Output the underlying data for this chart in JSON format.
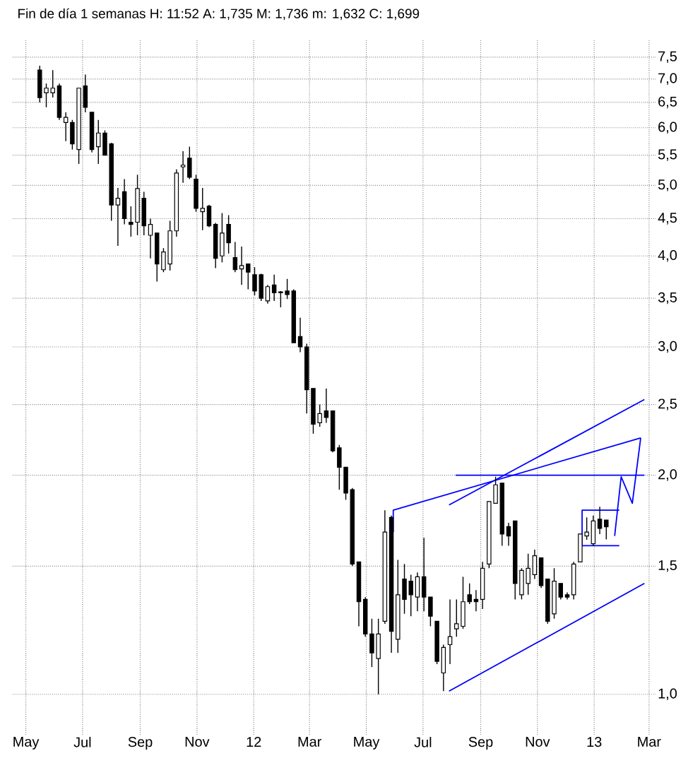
{
  "chart_data": {
    "type": "candlestick",
    "title": "Fin de día 1 semanas  H: 11:52  A: 1,735  M: 1,736  m: 1,632  C: 1,699",
    "color": "#000000",
    "log": "y",
    "grid": true,
    "xlim": [
      "2011-04-17",
      "2013-03-08"
    ],
    "ylim": [
      0.88,
      7.93
    ],
    "xticks": [
      {
        "value": "2011-05-01",
        "label": "May"
      },
      {
        "value": "2011-07-01",
        "label": "Jul"
      },
      {
        "value": "2011-09-01",
        "label": "Sep"
      },
      {
        "value": "2011-11-01",
        "label": "Nov"
      },
      {
        "value": "2012-01-01",
        "label": "12"
      },
      {
        "value": "2012-03-01",
        "label": "Mar"
      },
      {
        "value": "2012-05-01",
        "label": "May"
      },
      {
        "value": "2012-07-01",
        "label": "Jul"
      },
      {
        "value": "2012-09-01",
        "label": "Sep"
      },
      {
        "value": "2012-11-01",
        "label": "Nov"
      },
      {
        "value": "2013-01-01",
        "label": "13"
      },
      {
        "value": "2013-03-01",
        "label": "Mar"
      }
    ],
    "yticks": [
      {
        "value": 1.0,
        "label": "1,0"
      },
      {
        "value": 1.5,
        "label": "1,5"
      },
      {
        "value": 2.0,
        "label": "2,0"
      },
      {
        "value": 2.5,
        "label": "2,5"
      },
      {
        "value": 3.0,
        "label": "3,0"
      },
      {
        "value": 3.5,
        "label": "3,5"
      },
      {
        "value": 4.0,
        "label": "4,0"
      },
      {
        "value": 4.5,
        "label": "4,5"
      },
      {
        "value": 5.0,
        "label": "5,0"
      },
      {
        "value": 5.5,
        "label": "5,5"
      },
      {
        "value": 6.0,
        "label": "6,0"
      },
      {
        "value": 6.5,
        "label": "6,5"
      },
      {
        "value": 7.0,
        "label": "7,0"
      },
      {
        "value": 7.5,
        "label": "7,5"
      }
    ],
    "x": [
      "2011-05-16",
      "2011-05-23",
      "2011-05-30",
      "2011-06-06",
      "2011-06-13",
      "2011-06-20",
      "2011-06-27",
      "2011-07-04",
      "2011-07-11",
      "2011-07-18",
      "2011-07-25",
      "2011-08-01",
      "2011-08-08",
      "2011-08-15",
      "2011-08-22",
      "2011-08-29",
      "2011-09-05",
      "2011-09-12",
      "2011-09-19",
      "2011-09-26",
      "2011-10-03",
      "2011-10-10",
      "2011-10-17",
      "2011-10-24",
      "2011-10-31",
      "2011-11-07",
      "2011-11-14",
      "2011-11-21",
      "2011-11-28",
      "2011-12-05",
      "2011-12-12",
      "2011-12-19",
      "2011-12-26",
      "2012-01-02",
      "2012-01-09",
      "2012-01-16",
      "2012-01-23",
      "2012-01-30",
      "2012-02-06",
      "2012-02-13",
      "2012-02-20",
      "2012-02-27",
      "2012-03-05",
      "2012-03-12",
      "2012-03-19",
      "2012-03-26",
      "2012-04-02",
      "2012-04-09",
      "2012-04-16",
      "2012-04-23",
      "2012-04-30",
      "2012-05-07",
      "2012-05-14",
      "2012-05-21",
      "2012-05-28",
      "2012-06-04",
      "2012-06-11",
      "2012-06-18",
      "2012-06-25",
      "2012-07-02",
      "2012-07-09",
      "2012-07-16",
      "2012-07-23",
      "2012-07-30",
      "2012-08-06",
      "2012-08-13",
      "2012-08-20",
      "2012-08-27",
      "2012-09-03",
      "2012-09-10",
      "2012-09-17",
      "2012-09-24",
      "2012-10-01",
      "2012-10-08",
      "2012-10-15",
      "2012-10-22",
      "2012-10-29",
      "2012-11-05",
      "2012-11-12",
      "2012-11-19",
      "2012-11-26",
      "2012-12-03",
      "2012-12-10",
      "2012-12-17",
      "2012-12-24",
      "2012-12-31",
      "2013-01-07",
      "2013-01-14"
    ],
    "ohlc": [
      [
        7.2,
        7.3,
        6.5,
        6.6
      ],
      [
        6.7,
        6.9,
        6.4,
        6.8
      ],
      [
        6.7,
        7.2,
        6.6,
        6.8
      ],
      [
        6.85,
        6.9,
        6.15,
        6.2
      ],
      [
        6.1,
        6.3,
        5.75,
        6.2
      ],
      [
        6.1,
        6.15,
        5.6,
        5.7
      ],
      [
        5.6,
        6.8,
        5.35,
        6.8
      ],
      [
        6.85,
        7.1,
        6.3,
        6.4
      ],
      [
        6.3,
        6.3,
        5.55,
        5.6
      ],
      [
        5.65,
        6.15,
        5.35,
        5.9
      ],
      [
        5.9,
        5.95,
        5.5,
        5.5
      ],
      [
        5.7,
        5.72,
        4.47,
        4.7
      ],
      [
        4.7,
        4.96,
        4.13,
        4.8
      ],
      [
        4.9,
        5.1,
        4.42,
        4.5
      ],
      [
        4.45,
        4.68,
        4.25,
        4.42
      ],
      [
        4.45,
        5.17,
        4.27,
        4.95
      ],
      [
        4.8,
        4.9,
        4.27,
        4.4
      ],
      [
        4.27,
        4.5,
        3.97,
        4.42
      ],
      [
        4.3,
        4.3,
        3.69,
        3.9
      ],
      [
        3.83,
        4.1,
        3.8,
        4.05
      ],
      [
        3.9,
        4.47,
        3.82,
        4.33
      ],
      [
        4.33,
        5.26,
        4.25,
        5.2
      ],
      [
        5.3,
        5.57,
        5.04,
        5.33
      ],
      [
        5.45,
        5.65,
        5.1,
        5.13
      ],
      [
        5.1,
        5.17,
        4.6,
        4.65
      ],
      [
        4.6,
        4.96,
        4.34,
        4.65
      ],
      [
        4.68,
        4.7,
        4.38,
        4.4
      ],
      [
        4.42,
        4.44,
        3.85,
        3.97
      ],
      [
        4.0,
        4.58,
        3.92,
        4.3
      ],
      [
        4.42,
        4.55,
        4.03,
        4.17
      ],
      [
        3.98,
        4.18,
        3.8,
        3.83
      ],
      [
        3.84,
        4.12,
        3.65,
        3.88
      ],
      [
        3.9,
        3.9,
        3.6,
        3.8
      ],
      [
        3.77,
        3.86,
        3.53,
        3.58
      ],
      [
        3.77,
        3.78,
        3.47,
        3.5
      ],
      [
        3.47,
        3.65,
        3.44,
        3.63
      ],
      [
        3.65,
        3.77,
        3.47,
        3.56
      ],
      [
        3.57,
        3.58,
        3.4,
        3.56
      ],
      [
        3.58,
        3.72,
        3.49,
        3.54
      ],
      [
        3.58,
        3.6,
        3.04,
        3.04
      ],
      [
        3.1,
        3.29,
        2.95,
        3.0
      ],
      [
        3.0,
        3.03,
        2.43,
        2.62
      ],
      [
        2.63,
        2.63,
        2.28,
        2.35
      ],
      [
        2.36,
        2.5,
        2.33,
        2.43
      ],
      [
        2.45,
        2.63,
        2.36,
        2.4
      ],
      [
        2.45,
        2.45,
        2.15,
        2.16
      ],
      [
        2.18,
        2.2,
        1.91,
        2.05
      ],
      [
        2.05,
        2.05,
        1.85,
        1.89
      ],
      [
        1.91,
        1.92,
        1.5,
        1.51
      ],
      [
        1.52,
        1.52,
        1.24,
        1.34
      ],
      [
        1.35,
        1.36,
        1.2,
        1.21
      ],
      [
        1.21,
        1.27,
        1.09,
        1.14
      ],
      [
        1.12,
        1.27,
        1.0,
        1.21
      ],
      [
        1.26,
        1.79,
        1.25,
        1.67
      ],
      [
        1.75,
        1.76,
        1.14,
        1.22
      ],
      [
        1.19,
        1.53,
        1.14,
        1.37
      ],
      [
        1.44,
        1.51,
        1.29,
        1.35
      ],
      [
        1.43,
        1.46,
        1.28,
        1.37
      ],
      [
        1.36,
        1.47,
        1.3,
        1.45
      ],
      [
        1.45,
        1.64,
        1.3,
        1.36
      ],
      [
        1.36,
        1.36,
        1.24,
        1.28
      ],
      [
        1.26,
        1.26,
        1.1,
        1.11
      ],
      [
        1.07,
        1.17,
        1.01,
        1.16
      ],
      [
        1.17,
        1.35,
        1.1,
        1.2
      ],
      [
        1.23,
        1.35,
        1.2,
        1.25
      ],
      [
        1.24,
        1.45,
        1.23,
        1.34
      ],
      [
        1.37,
        1.42,
        1.33,
        1.34
      ],
      [
        1.35,
        1.39,
        1.3,
        1.34
      ],
      [
        1.35,
        1.52,
        1.31,
        1.49
      ],
      [
        1.51,
        1.84,
        1.49,
        1.84
      ],
      [
        1.83,
        1.99,
        1.83,
        1.94
      ],
      [
        1.95,
        1.95,
        1.6,
        1.66
      ],
      [
        1.7,
        1.72,
        1.6,
        1.65
      ],
      [
        1.73,
        1.73,
        1.35,
        1.42
      ],
      [
        1.37,
        1.49,
        1.35,
        1.48
      ],
      [
        1.42,
        1.56,
        1.37,
        1.49
      ],
      [
        1.46,
        1.58,
        1.44,
        1.55
      ],
      [
        1.54,
        1.54,
        1.4,
        1.41
      ],
      [
        1.44,
        1.44,
        1.25,
        1.26
      ],
      [
        1.29,
        1.49,
        1.27,
        1.43
      ],
      [
        1.42,
        1.42,
        1.35,
        1.36
      ],
      [
        1.37,
        1.38,
        1.35,
        1.36
      ],
      [
        1.37,
        1.52,
        1.35,
        1.51
      ],
      [
        1.52,
        1.66,
        1.52,
        1.66
      ],
      [
        1.65,
        1.75,
        1.63,
        1.67
      ],
      [
        1.61,
        1.76,
        1.6,
        1.73
      ],
      [
        1.74,
        1.81,
        1.66,
        1.69
      ],
      [
        1.735,
        1.736,
        1.632,
        1.699
      ]
    ],
    "series": [
      {
        "type": "line",
        "color": "#0000ff",
        "x": [
          "2012-05-30",
          "2012-05-30",
          "2013-02-20"
        ],
        "values": [
          1.67,
          1.79,
          2.25
        ]
      },
      {
        "type": "line",
        "color": "#0000ff",
        "x": [
          "2012-07-29",
          "2013-02-24"
        ],
        "values": [
          1.82,
          2.54
        ]
      },
      {
        "type": "line",
        "color": "#0000ff",
        "x": [
          "2012-07-29",
          "2013-02-24"
        ],
        "values": [
          1.01,
          1.42
        ]
      },
      {
        "type": "line",
        "color": "#0000ff",
        "x": [
          "2012-08-05",
          "2013-02-24"
        ],
        "values": [
          2.0,
          2.0
        ]
      },
      {
        "type": "line",
        "color": "#0000ff",
        "x": [
          "2013-01-28",
          "2012-12-19",
          "2012-12-19",
          "2013-01-28"
        ],
        "values": [
          1.79,
          1.79,
          1.6,
          1.6
        ]
      },
      {
        "type": "line",
        "color": "#0000ff",
        "x": [
          "2013-01-23",
          "2013-01-30",
          "2013-02-11",
          "2013-02-20"
        ],
        "values": [
          1.65,
          1.99,
          1.83,
          2.25
        ]
      }
    ]
  }
}
